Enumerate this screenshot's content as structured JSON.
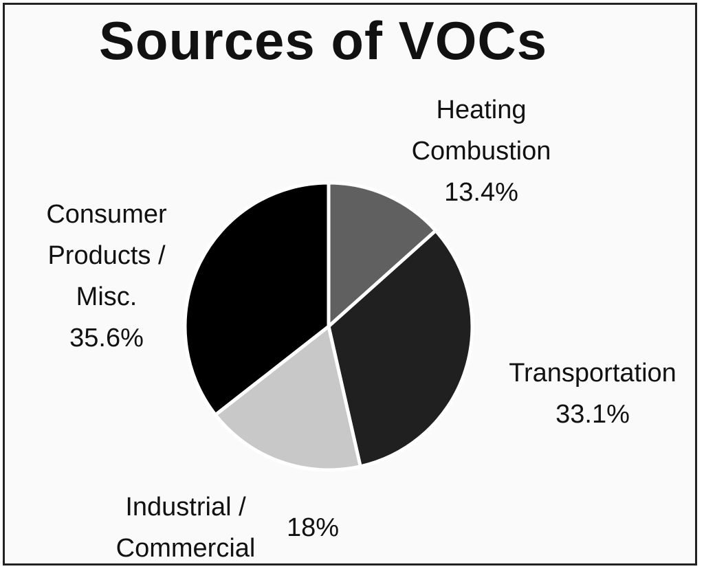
{
  "chart_data": {
    "type": "pie",
    "title": "Sources of VOCs",
    "slices": [
      {
        "name": "Heating Combustion",
        "label_lines": [
          "Heating",
          "Combustion"
        ],
        "value": 13.4,
        "value_label": "13.4%",
        "color": "#606060"
      },
      {
        "name": "Transportation",
        "label_lines": [
          "Transportation"
        ],
        "value": 33.1,
        "value_label": "33.1%",
        "color": "#202020"
      },
      {
        "name": "Industrial / Commercial",
        "label_lines": [
          "Industrial /",
          "Commercial"
        ],
        "value": 18,
        "value_label": "18%",
        "color": "#c8c8c8"
      },
      {
        "name": "Consumer Products / Misc.",
        "label_lines": [
          "Consumer",
          "Products /",
          "Misc."
        ],
        "value": 35.6,
        "value_label": "35.6%",
        "color": "#000000"
      }
    ]
  }
}
